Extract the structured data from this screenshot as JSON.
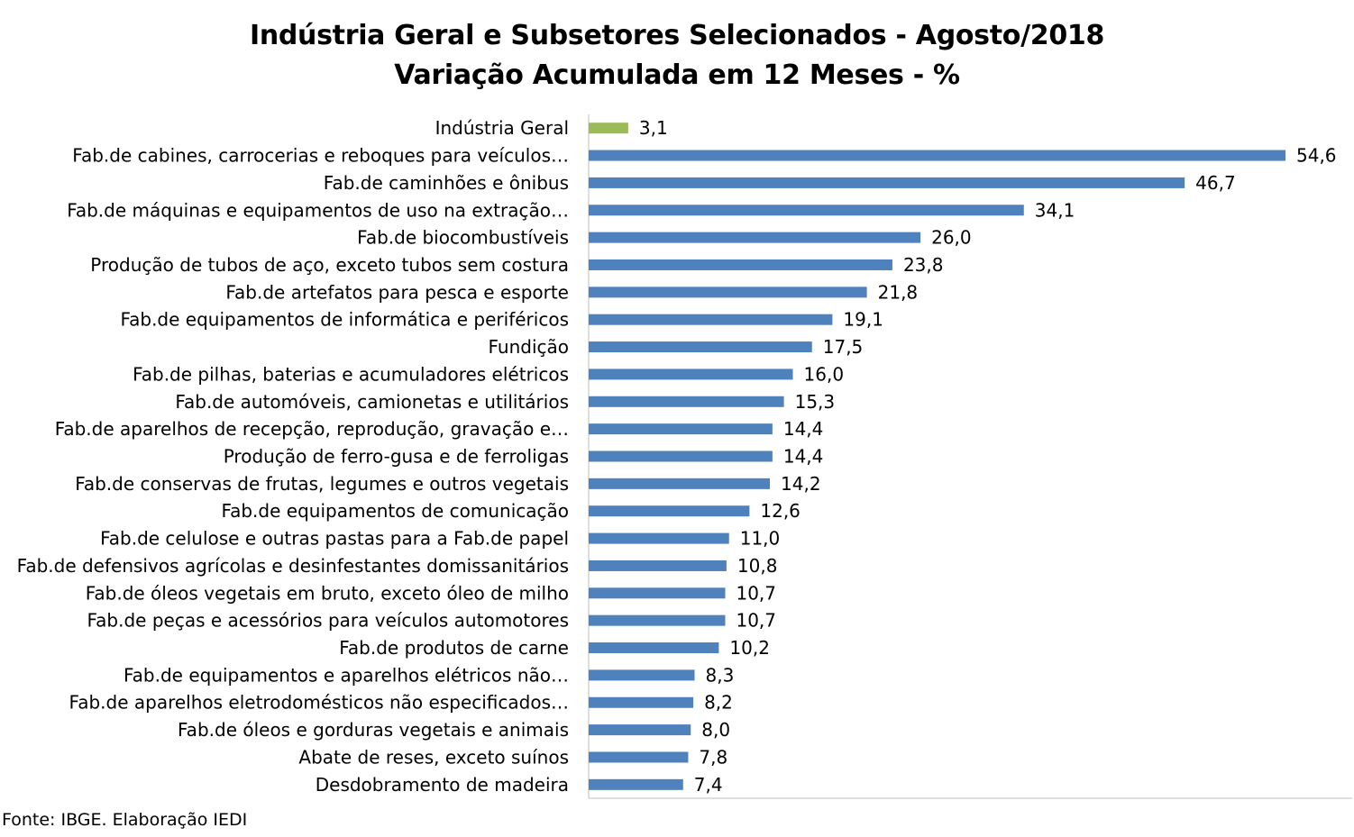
{
  "chart_data": {
    "type": "bar",
    "orientation": "horizontal",
    "title": "Indústria Geral e Subsetores Selecionados - Agosto/2018",
    "subtitle": "Variação Acumulada em 12 Meses - %",
    "categories": [
      "Indústria Geral",
      "Fab.de cabines, carrocerias e reboques para veículos…",
      "Fab.de caminhões e ônibus",
      "Fab.de máquinas e equipamentos de uso na extração…",
      "Fab.de biocombustíveis",
      "Produção de tubos de aço, exceto tubos sem costura",
      "Fab.de artefatos para pesca e esporte",
      "Fab.de equipamentos de informática e periféricos",
      "Fundição",
      "Fab.de pilhas, baterias e acumuladores elétricos",
      "Fab.de automóveis, camionetas e utilitários",
      "Fab.de aparelhos de recepção, reprodução, gravação e…",
      "Produção de ferro-gusa e de ferroligas",
      "Fab.de conservas de frutas, legumes e outros vegetais",
      "Fab.de equipamentos de comunicação",
      "Fab.de celulose e outras pastas para a Fab.de papel",
      "Fab.de defensivos agrícolas e desinfestantes domissanitários",
      "Fab.de óleos vegetais em bruto, exceto óleo de milho",
      "Fab.de peças e acessórios para veículos automotores",
      "Fab.de produtos de carne",
      "Fab.de equipamentos e aparelhos elétricos não…",
      "Fab.de aparelhos eletrodomésticos não especificados…",
      "Fab.de óleos e gorduras vegetais e animais",
      "Abate de reses, exceto suínos",
      "Desdobramento de madeira"
    ],
    "values": [
      3.1,
      54.6,
      46.7,
      34.1,
      26.0,
      23.8,
      21.8,
      19.1,
      17.5,
      16.0,
      15.3,
      14.4,
      14.4,
      14.2,
      12.6,
      11.0,
      10.8,
      10.7,
      10.7,
      10.2,
      8.3,
      8.2,
      8.0,
      7.8,
      7.4
    ],
    "value_labels": [
      "3,1",
      "54,6",
      "46,7",
      "34,1",
      "26,0",
      "23,8",
      "21,8",
      "19,1",
      "17,5",
      "16,0",
      "15,3",
      "14,4",
      "14,4",
      "14,2",
      "12,6",
      "11,0",
      "10,8",
      "10,7",
      "10,7",
      "10,2",
      "8,3",
      "8,2",
      "8,0",
      "7,8",
      "7,4"
    ],
    "xlim": [
      0,
      60
    ],
    "grid": false,
    "legend": "none",
    "colors": {
      "highlight": "#9bbb59",
      "default": "#4f81bd",
      "axis": "#bfbfbf"
    },
    "highlight_index": 0
  },
  "source_note": "Fonte: IBGE. Elaboração IEDI"
}
